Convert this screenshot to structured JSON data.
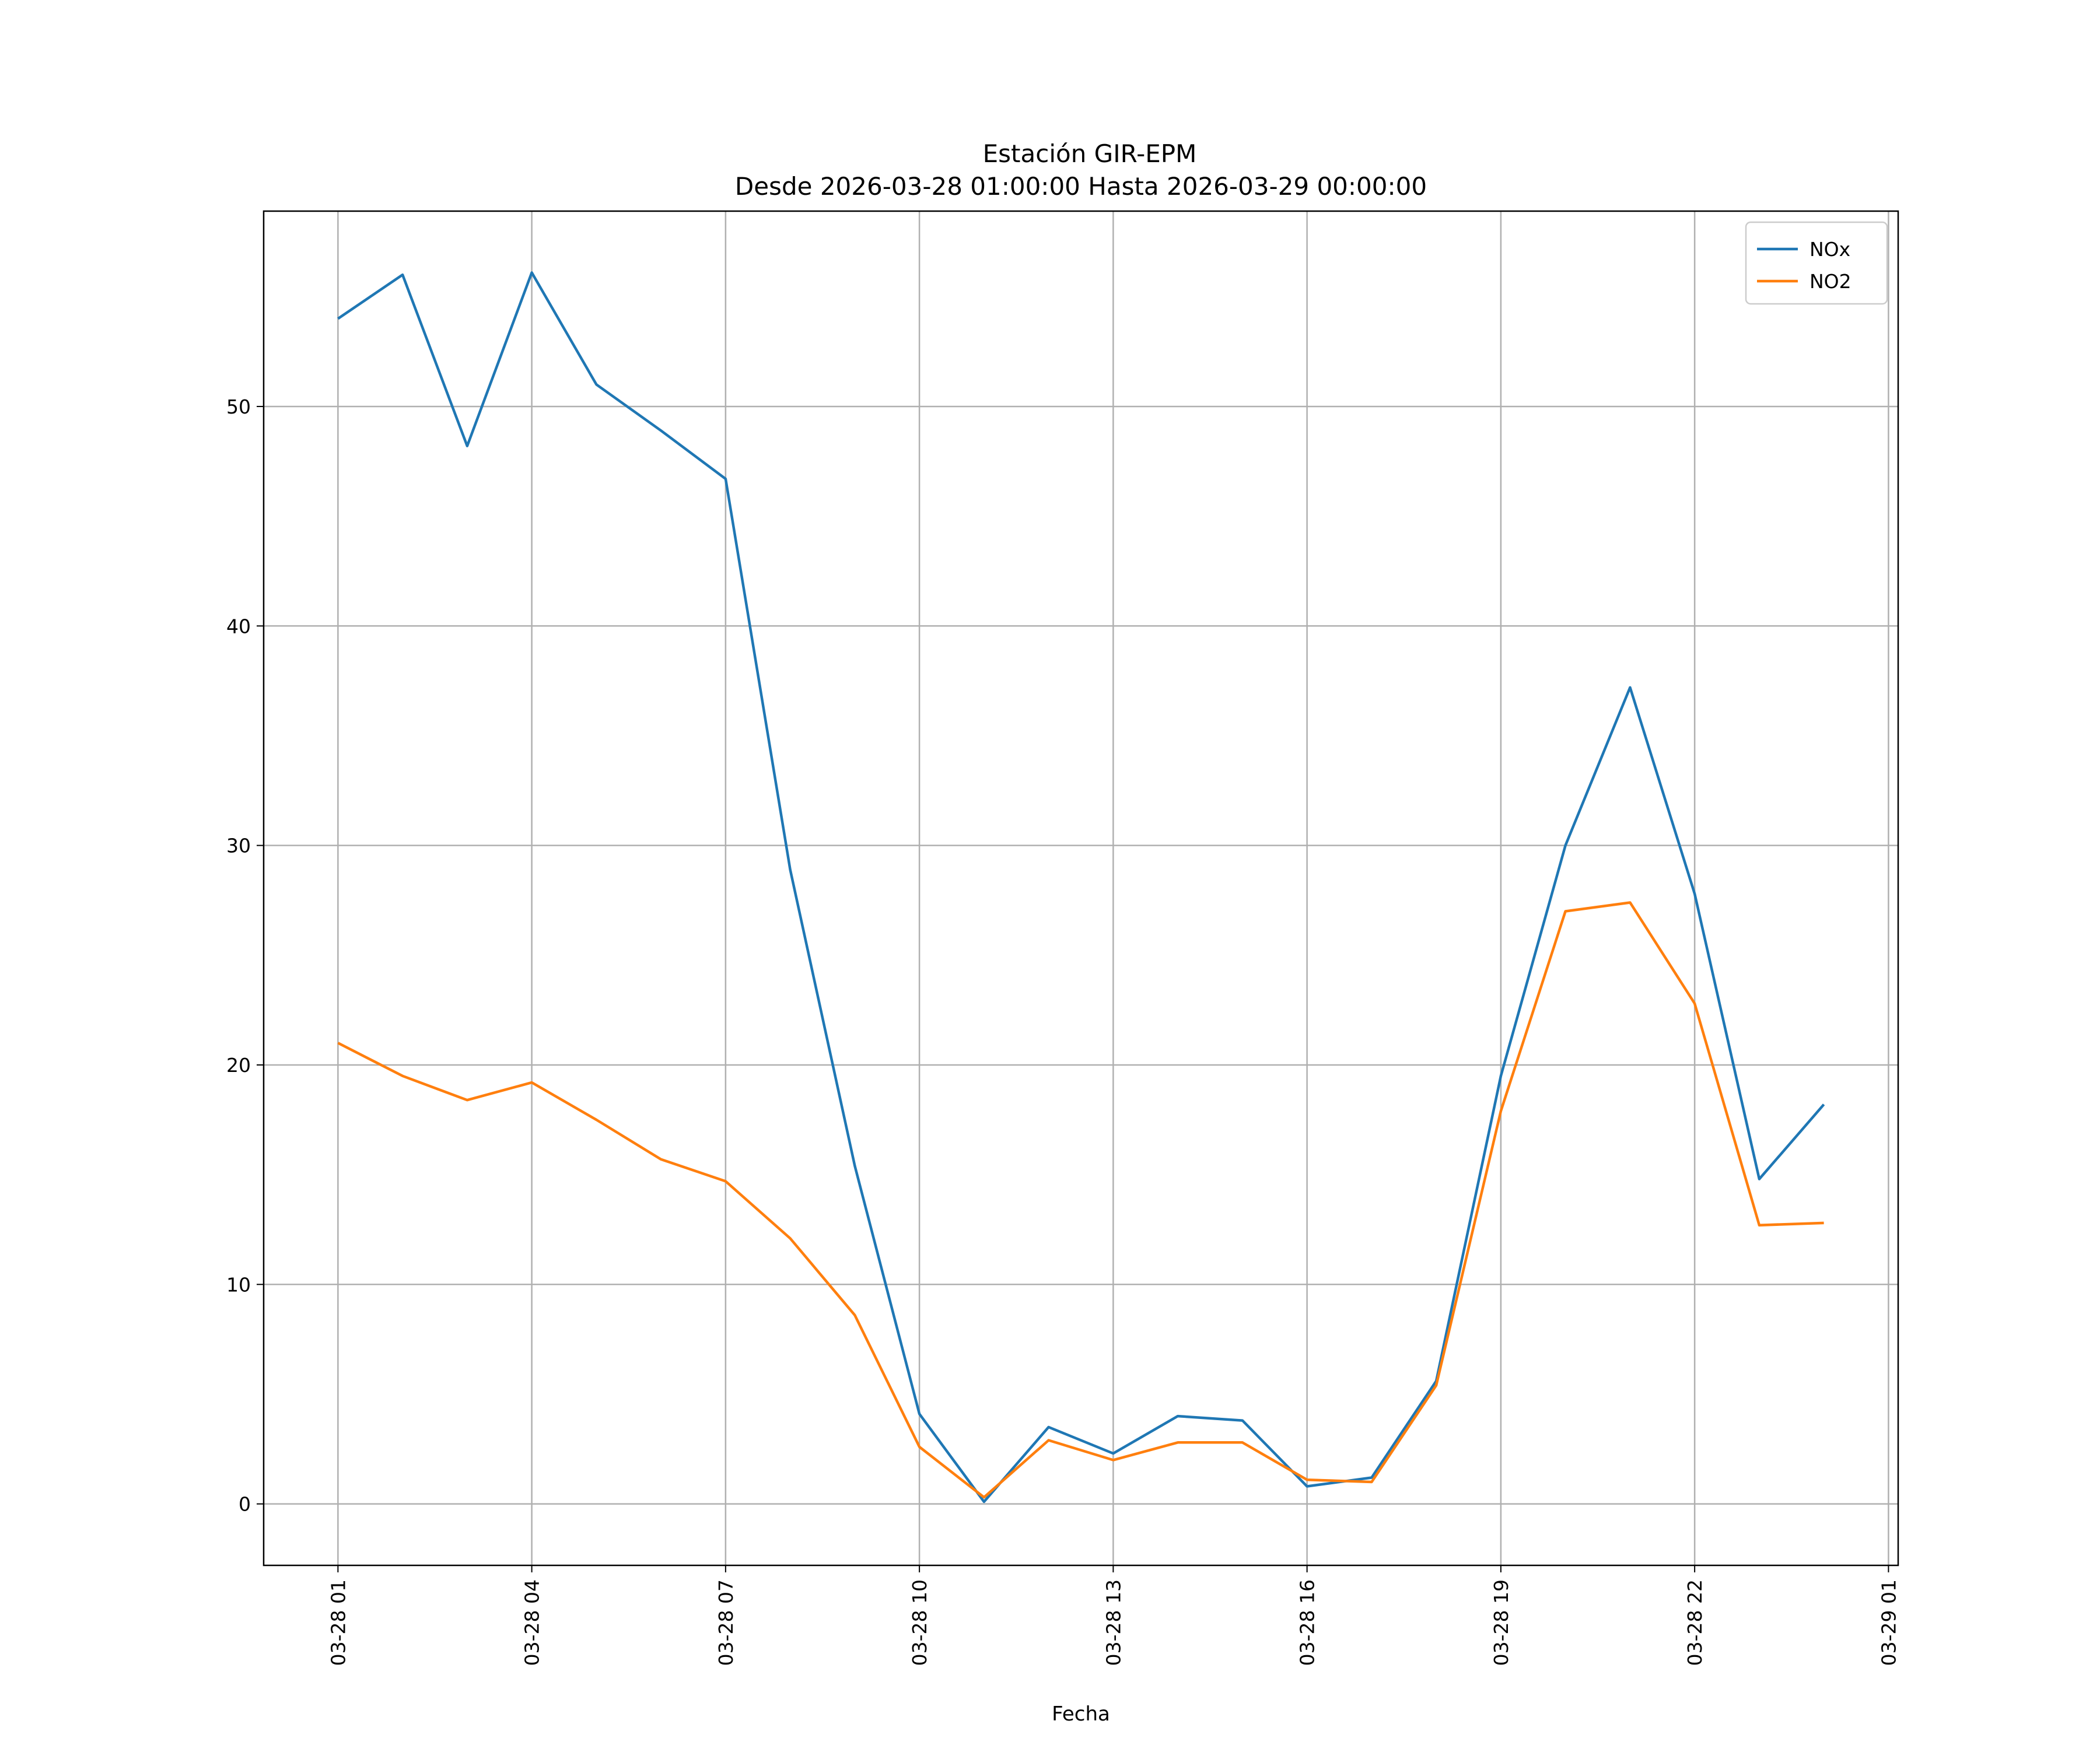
{
  "chart_data": {
    "type": "line",
    "title": "Estación GIR-EPM",
    "subtitle": "Desde 2026-03-28 01:00:00 Hasta 2026-03-29 00:00:00",
    "xlabel": "Fecha",
    "ylabel": "",
    "x": [
      "2026-03-28 01:00",
      "2026-03-28 02:00",
      "2026-03-28 03:00",
      "2026-03-28 04:00",
      "2026-03-28 05:00",
      "2026-03-28 06:00",
      "2026-03-28 07:00",
      "2026-03-28 08:00",
      "2026-03-28 09:00",
      "2026-03-28 10:00",
      "2026-03-28 11:00",
      "2026-03-28 12:00",
      "2026-03-28 13:00",
      "2026-03-28 14:00",
      "2026-03-28 15:00",
      "2026-03-28 16:00",
      "2026-03-28 17:00",
      "2026-03-28 18:00",
      "2026-03-28 19:00",
      "2026-03-28 20:00",
      "2026-03-28 21:00",
      "2026-03-28 22:00",
      "2026-03-28 23:00",
      "2026-03-29 00:00"
    ],
    "series": [
      {
        "name": "NOx",
        "color": "#1f77b4",
        "values": [
          54.0,
          56.0,
          48.2,
          56.1,
          51.0,
          48.9,
          46.7,
          28.9,
          15.4,
          4.1,
          0.1,
          3.5,
          2.3,
          4.0,
          3.8,
          0.8,
          1.2,
          5.6,
          19.5,
          30.0,
          37.2,
          27.8,
          14.8,
          18.2
        ]
      },
      {
        "name": "NO2",
        "color": "#ff7f0e",
        "values": [
          21.0,
          19.5,
          18.4,
          19.2,
          17.5,
          15.7,
          14.7,
          12.1,
          8.6,
          2.6,
          0.3,
          2.9,
          2.0,
          2.8,
          2.8,
          1.1,
          1.0,
          5.4,
          17.9,
          27.0,
          27.4,
          22.8,
          12.7,
          12.8
        ]
      }
    ],
    "xlim": [
      "2026-03-27 23:51",
      "2026-03-29 01:09"
    ],
    "ylim": [
      -2.8,
      58.9
    ],
    "yticks": [
      0,
      10,
      20,
      30,
      40,
      50
    ],
    "xticks": [
      "03-28 01",
      "03-28 04",
      "03-28 07",
      "03-28 10",
      "03-28 13",
      "03-28 16",
      "03-28 19",
      "03-28 22",
      "03-29 01"
    ],
    "grid": true,
    "legend": "top-right"
  }
}
